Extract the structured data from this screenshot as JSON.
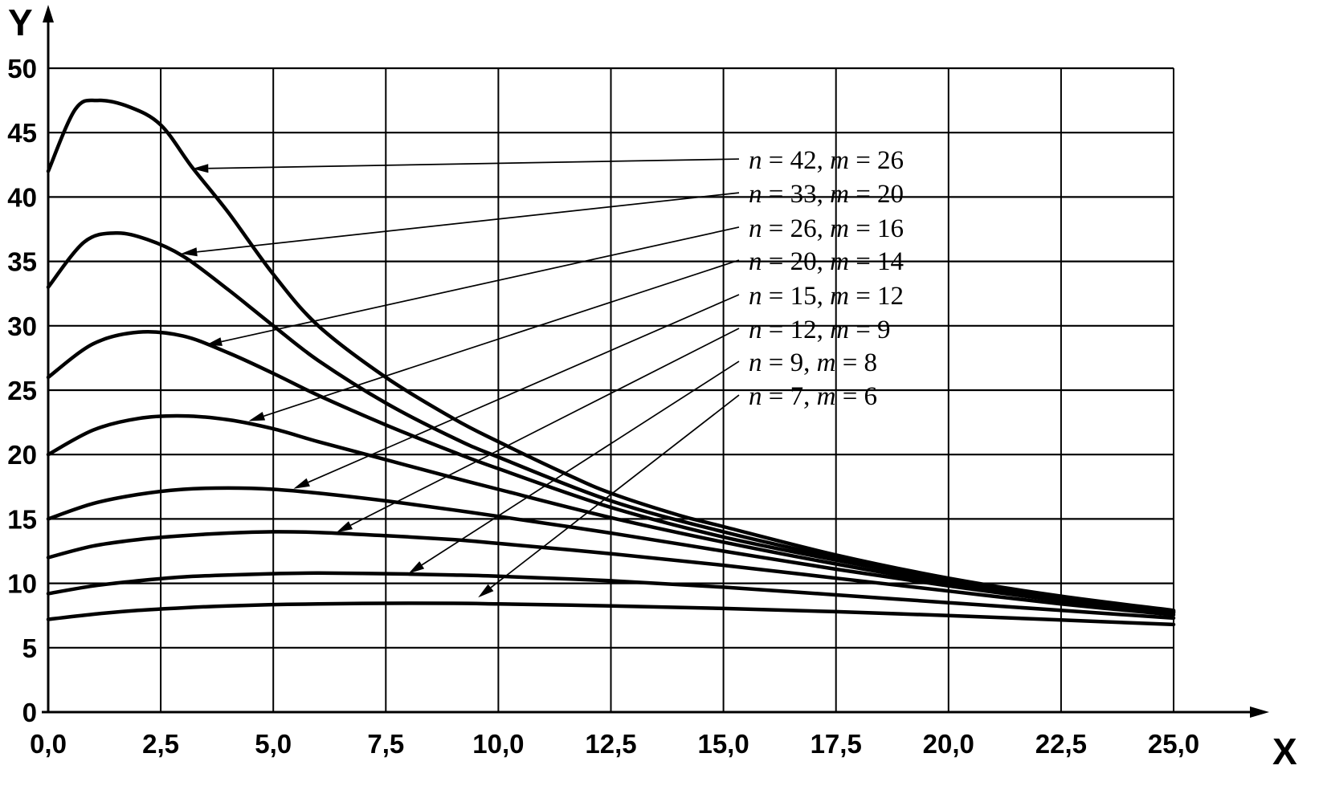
{
  "figure": {
    "background": "#ffffff",
    "line_color": "#000000"
  },
  "chart_data": {
    "type": "line",
    "title": "",
    "xlabel": "X",
    "ylabel": "Y",
    "xlim": [
      0,
      25
    ],
    "ylim": [
      0,
      50
    ],
    "grid": true,
    "legend_position": "inside-right annotations with leader arrows",
    "xticks": [
      0,
      2.5,
      5,
      7.5,
      10,
      12.5,
      15,
      17.5,
      20,
      22.5,
      25
    ],
    "xtick_labels": [
      "0,0",
      "2,5",
      "5,0",
      "7,5",
      "10,0",
      "12,5",
      "15,0",
      "17,5",
      "20,0",
      "22,5",
      "25,0"
    ],
    "yticks": [
      0,
      5,
      10,
      15,
      20,
      25,
      30,
      35,
      40,
      45,
      50
    ],
    "ytick_labels": [
      "0",
      "5",
      "10",
      "15",
      "20",
      "25",
      "30",
      "35",
      "40",
      "45",
      "50"
    ],
    "series": [
      {
        "name": "n = 42, m = 26",
        "n": 42,
        "m": 26,
        "points": [
          [
            0,
            42
          ],
          [
            0.6,
            46.8
          ],
          [
            1.1,
            47.5
          ],
          [
            1.8,
            47.0
          ],
          [
            2.5,
            45.6
          ],
          [
            3.2,
            42.3
          ],
          [
            4,
            38.8
          ],
          [
            5,
            34.0
          ],
          [
            6,
            30.0
          ],
          [
            7.5,
            26.0
          ],
          [
            9,
            22.8
          ],
          [
            10,
            21.0
          ],
          [
            11.5,
            18.5
          ],
          [
            12.5,
            17.0
          ],
          [
            14,
            15.3
          ],
          [
            15,
            14.4
          ],
          [
            17.5,
            12.2
          ],
          [
            20,
            10.4
          ],
          [
            22.5,
            9.0
          ],
          [
            25,
            7.9
          ]
        ]
      },
      {
        "name": "n = 33, m = 20",
        "n": 33,
        "m": 20,
        "points": [
          [
            0,
            33
          ],
          [
            0.8,
            36.5
          ],
          [
            1.5,
            37.2
          ],
          [
            2.2,
            36.7
          ],
          [
            3,
            35.4
          ],
          [
            4,
            32.8
          ],
          [
            5,
            30.0
          ],
          [
            6,
            27.3
          ],
          [
            7.5,
            24.0
          ],
          [
            9,
            21.3
          ],
          [
            10,
            19.8
          ],
          [
            12.5,
            16.4
          ],
          [
            15,
            14.0
          ],
          [
            17.5,
            12.0
          ],
          [
            20,
            10.3
          ],
          [
            22.5,
            8.9
          ],
          [
            25,
            7.85
          ]
        ]
      },
      {
        "name": "n = 26, m = 16",
        "n": 26,
        "m": 16,
        "points": [
          [
            0,
            26
          ],
          [
            1,
            28.6
          ],
          [
            2,
            29.5
          ],
          [
            3,
            29.2
          ],
          [
            4,
            27.9
          ],
          [
            5,
            26.3
          ],
          [
            6,
            24.6
          ],
          [
            7.5,
            22.3
          ],
          [
            9,
            20.2
          ],
          [
            10,
            18.9
          ],
          [
            12.5,
            15.9
          ],
          [
            15,
            13.6
          ],
          [
            17.5,
            11.8
          ],
          [
            20,
            10.2
          ],
          [
            22.5,
            8.85
          ],
          [
            25,
            7.8
          ]
        ]
      },
      {
        "name": "n = 20, m = 14",
        "n": 20,
        "m": 14,
        "points": [
          [
            0,
            20
          ],
          [
            1,
            21.9
          ],
          [
            2,
            22.8
          ],
          [
            3,
            23.0
          ],
          [
            4,
            22.7
          ],
          [
            5,
            22.0
          ],
          [
            6,
            21.0
          ],
          [
            7.5,
            19.6
          ],
          [
            9,
            18.2
          ],
          [
            10,
            17.3
          ],
          [
            12.5,
            15.1
          ],
          [
            15,
            13.2
          ],
          [
            17.5,
            11.5
          ],
          [
            20,
            10.0
          ],
          [
            22.5,
            8.8
          ],
          [
            25,
            7.75
          ]
        ]
      },
      {
        "name": "n = 15, m = 12",
        "n": 15,
        "m": 12,
        "points": [
          [
            0,
            15
          ],
          [
            1,
            16.2
          ],
          [
            2,
            16.9
          ],
          [
            3,
            17.3
          ],
          [
            4,
            17.4
          ],
          [
            5,
            17.3
          ],
          [
            6,
            17.0
          ],
          [
            7.5,
            16.4
          ],
          [
            9,
            15.7
          ],
          [
            10,
            15.2
          ],
          [
            12.5,
            13.9
          ],
          [
            15,
            12.5
          ],
          [
            17.5,
            11.1
          ],
          [
            20,
            9.8
          ],
          [
            22.5,
            8.65
          ],
          [
            25,
            7.7
          ]
        ]
      },
      {
        "name": "n = 12, m = 9",
        "n": 12,
        "m": 9,
        "points": [
          [
            0,
            12
          ],
          [
            1,
            12.9
          ],
          [
            2,
            13.4
          ],
          [
            3,
            13.7
          ],
          [
            4,
            13.9
          ],
          [
            5,
            14.0
          ],
          [
            6,
            13.95
          ],
          [
            7.5,
            13.7
          ],
          [
            9,
            13.4
          ],
          [
            10,
            13.1
          ],
          [
            12.5,
            12.3
          ],
          [
            15,
            11.4
          ],
          [
            17.5,
            10.4
          ],
          [
            20,
            9.4
          ],
          [
            22.5,
            8.4
          ],
          [
            25,
            7.55
          ]
        ]
      },
      {
        "name": "n = 9, m = 8",
        "n": 9,
        "m": 8,
        "points": [
          [
            0,
            9.2
          ],
          [
            1,
            9.8
          ],
          [
            2,
            10.2
          ],
          [
            3,
            10.5
          ],
          [
            4,
            10.65
          ],
          [
            5,
            10.75
          ],
          [
            6,
            10.8
          ],
          [
            7.5,
            10.75
          ],
          [
            9,
            10.65
          ],
          [
            10,
            10.55
          ],
          [
            12.5,
            10.2
          ],
          [
            15,
            9.7
          ],
          [
            17.5,
            9.1
          ],
          [
            20,
            8.5
          ],
          [
            22.5,
            7.9
          ],
          [
            25,
            7.3
          ]
        ]
      },
      {
        "name": "n = 7, m = 6",
        "n": 7,
        "m": 6,
        "points": [
          [
            0,
            7.2
          ],
          [
            1,
            7.6
          ],
          [
            2,
            7.9
          ],
          [
            3,
            8.1
          ],
          [
            4,
            8.25
          ],
          [
            5,
            8.35
          ],
          [
            6,
            8.4
          ],
          [
            7.5,
            8.45
          ],
          [
            9,
            8.45
          ],
          [
            10,
            8.4
          ],
          [
            12.5,
            8.25
          ],
          [
            15,
            8.05
          ],
          [
            17.5,
            7.8
          ],
          [
            20,
            7.5
          ],
          [
            22.5,
            7.15
          ],
          [
            25,
            6.8
          ]
        ]
      }
    ],
    "annotations": [
      {
        "label": "n = 42, m = 26",
        "n": 42,
        "m": 26,
        "label_at": [
          15.56,
          42.95
        ],
        "arrow_at": [
          3.2,
          42.2
        ]
      },
      {
        "label": "n = 33, m = 20",
        "n": 33,
        "m": 20,
        "label_at": [
          15.56,
          40.33
        ],
        "arrow_at": [
          2.95,
          35.6
        ]
      },
      {
        "label": "n = 26, m = 16",
        "n": 26,
        "m": 16,
        "label_at": [
          15.56,
          37.66
        ],
        "arrow_at": [
          3.5,
          28.5
        ]
      },
      {
        "label": "n = 20, m = 14",
        "n": 20,
        "m": 14,
        "label_at": [
          15.56,
          35.1
        ],
        "arrow_at": [
          4.45,
          22.6
        ]
      },
      {
        "label": "n = 15, m = 12",
        "n": 15,
        "m": 12,
        "label_at": [
          15.56,
          32.42
        ],
        "arrow_at": [
          5.45,
          17.35
        ]
      },
      {
        "label": "n = 12, m = 9",
        "n": 12,
        "m": 9,
        "label_at": [
          15.56,
          29.8
        ],
        "arrow_at": [
          6.4,
          13.95
        ]
      },
      {
        "label": "n = 9, m = 8",
        "n": 9,
        "m": 8,
        "label_at": [
          15.56,
          27.24
        ],
        "arrow_at": [
          8.0,
          10.75
        ]
      },
      {
        "label": "n = 7, m = 6",
        "n": 7,
        "m": 6,
        "label_at": [
          15.56,
          24.62
        ],
        "arrow_at": [
          9.55,
          8.9
        ]
      }
    ]
  }
}
